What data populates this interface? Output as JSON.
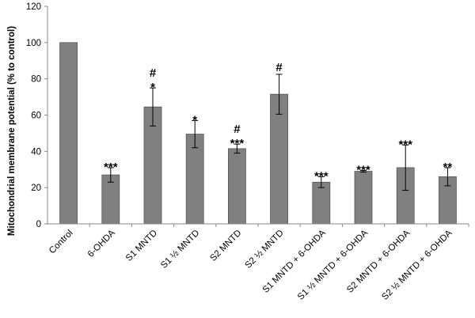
{
  "chart_data": {
    "type": "bar",
    "ylabel": "Mitochondrial membrane potential (% to control)",
    "ylim": [
      0,
      120
    ],
    "yticks": [
      0,
      20,
      40,
      60,
      80,
      100,
      120
    ],
    "grid": false,
    "legend": "none",
    "bar_color": "#808080",
    "categories": [
      "Control",
      "6-OHDA",
      "S1 MNTD",
      "S1 ½ MNTD",
      "S2 MNTD",
      "S2 ½ MNTD",
      "S1 MNTD + 6-OHDA",
      "S1 ½ MNTD + 6-OHDA",
      "S2 MNTD + 6-OHDA",
      "S2 ½ MNTD + 6-OHDA"
    ],
    "values": [
      100,
      27,
      64.5,
      49.5,
      41.5,
      71.5,
      23,
      29,
      31,
      26
    ],
    "errors": [
      0,
      4,
      10.5,
      7.5,
      2.5,
      11,
      3,
      0.5,
      12.5,
      5
    ],
    "annotations": [
      [],
      [
        "***"
      ],
      [
        "*",
        "#"
      ],
      [
        "*"
      ],
      [
        "***",
        "#"
      ],
      [
        "#"
      ],
      [
        "***"
      ],
      [
        "***"
      ],
      [
        "***"
      ],
      [
        "**"
      ]
    ]
  }
}
